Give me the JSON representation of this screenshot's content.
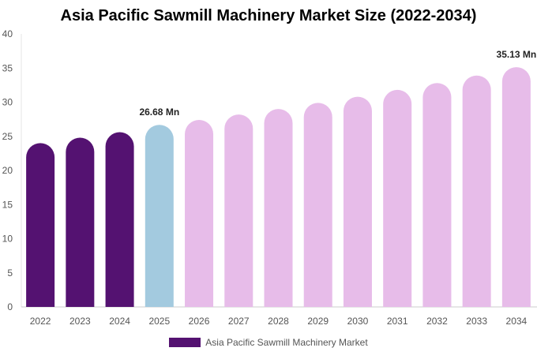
{
  "chart_data": {
    "type": "bar",
    "title": "Asia Pacific Sawmill Machinery Market Size (2022-2034)",
    "categories": [
      "2022",
      "2023",
      "2024",
      "2025",
      "2026",
      "2027",
      "2028",
      "2029",
      "2030",
      "2031",
      "2032",
      "2033",
      "2034"
    ],
    "series": [
      {
        "name": "Asia Pacific Sawmill Machinery Market",
        "values": [
          24.0,
          24.8,
          25.6,
          26.68,
          27.4,
          28.2,
          29.0,
          29.9,
          30.8,
          31.8,
          32.8,
          33.9,
          35.13
        ]
      }
    ],
    "bar_colors": [
      "#541271",
      "#541271",
      "#541271",
      "#a3cadf",
      "#e7bce9",
      "#e7bce9",
      "#e7bce9",
      "#e7bce9",
      "#e7bce9",
      "#e7bce9",
      "#e7bce9",
      "#e7bce9",
      "#e7bce9"
    ],
    "data_labels": [
      {
        "index": 3,
        "text": "26.68 Mn"
      },
      {
        "index": 12,
        "text": "35.13 Mn"
      }
    ],
    "yticks": [
      0,
      5,
      10,
      15,
      20,
      25,
      30,
      35,
      40
    ],
    "ylim": [
      0,
      40
    ],
    "grid": false,
    "legend": {
      "position": "bottom",
      "color": "#541271"
    }
  }
}
